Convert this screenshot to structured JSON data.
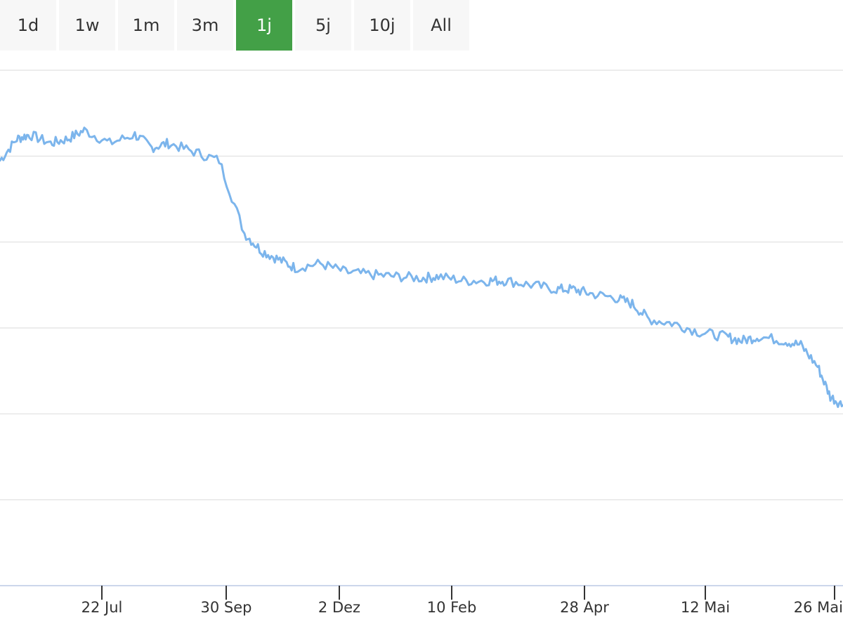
{
  "range_selector": {
    "buttons": [
      "1d",
      "1w",
      "1m",
      "3m",
      "1j",
      "5j",
      "10j",
      "All"
    ],
    "selected": "1j",
    "active_color": "#43a047"
  },
  "chart_data": {
    "type": "line",
    "title": "",
    "xlabel": "",
    "ylabel": "",
    "grid": true,
    "line_color": "#7cb5ec",
    "x_ticks": [
      "22 Jul",
      "30 Sep",
      "2 Dez",
      "10 Feb",
      "28 Apr",
      "12 Mai",
      "26 Mai"
    ],
    "ylim": [
      0,
      6
    ],
    "series": [
      {
        "values": [
          [
            0,
            4.95
          ],
          [
            0.02,
            5.2
          ],
          [
            0.035,
            5.25
          ],
          [
            0.06,
            5.15
          ],
          [
            0.08,
            5.2
          ],
          [
            0.1,
            5.3
          ],
          [
            0.13,
            5.15
          ],
          [
            0.16,
            5.25
          ],
          [
            0.18,
            5.1
          ],
          [
            0.2,
            5.15
          ],
          [
            0.23,
            5.05
          ],
          [
            0.26,
            4.95
          ],
          [
            0.29,
            4.1
          ],
          [
            0.31,
            3.9
          ],
          [
            0.33,
            3.8
          ],
          [
            0.35,
            3.7
          ],
          [
            0.38,
            3.75
          ],
          [
            0.41,
            3.65
          ],
          [
            0.44,
            3.62
          ],
          [
            0.47,
            3.6
          ],
          [
            0.5,
            3.58
          ],
          [
            0.52,
            3.6
          ],
          [
            0.55,
            3.55
          ],
          [
            0.58,
            3.55
          ],
          [
            0.6,
            3.55
          ],
          [
            0.63,
            3.5
          ],
          [
            0.66,
            3.45
          ],
          [
            0.68,
            3.45
          ],
          [
            0.7,
            3.4
          ],
          [
            0.73,
            3.35
          ],
          [
            0.75,
            3.28
          ],
          [
            0.77,
            3.1
          ],
          [
            0.8,
            3.05
          ],
          [
            0.83,
            2.95
          ],
          [
            0.86,
            2.9
          ],
          [
            0.88,
            2.85
          ],
          [
            0.9,
            2.9
          ],
          [
            0.93,
            2.85
          ],
          [
            0.95,
            2.8
          ],
          [
            0.97,
            2.55
          ],
          [
            0.985,
            2.2
          ],
          [
            1.0,
            2.1
          ]
        ]
      }
    ]
  }
}
